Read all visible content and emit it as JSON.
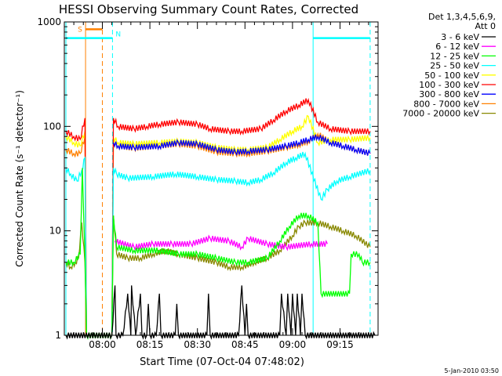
{
  "chart_data": {
    "type": "line",
    "title": "HESSI Observing Summary Count Rates, Corrected",
    "xlabel": "Start Time (07-Oct-04 07:48:02)",
    "ylabel": "Corrected Count Rate (s⁻¹ detector⁻¹)",
    "yscale": "log",
    "ylim": [
      1,
      1000
    ],
    "y_ticks": [
      {
        "value": 1,
        "label": "1"
      },
      {
        "value": 10,
        "label": "10"
      },
      {
        "value": 100,
        "label": "100"
      },
      {
        "value": 1000,
        "label": "1000"
      }
    ],
    "x_ticks": [
      {
        "value": 12,
        "label": "08:00"
      },
      {
        "value": 27,
        "label": "08:15"
      },
      {
        "value": 42,
        "label": "08:30"
      },
      {
        "value": 57,
        "label": "08:45"
      },
      {
        "value": 72,
        "label": "09:00"
      },
      {
        "value": 87,
        "label": "09:15"
      }
    ],
    "x_minor_ticks": [
      3,
      6,
      9,
      15,
      18,
      21,
      24,
      30,
      33,
      36,
      39,
      45,
      48,
      51,
      54,
      60,
      63,
      66,
      69,
      75,
      78,
      81,
      84,
      90,
      93,
      96
    ],
    "x_range_minutes": [
      0,
      99
    ],
    "x_axis_note": "x values are minutes after 07:48:00",
    "legend_header": [
      "Det 1,3,4,5,6,9,",
      "Att 0"
    ],
    "series": [
      {
        "name": "3 - 6 keV",
        "color": "#000000",
        "points": [
          [
            0.5,
            1
          ],
          [
            15,
            1
          ],
          [
            16,
            3.0
          ],
          [
            16.3,
            1
          ],
          [
            18.5,
            1
          ],
          [
            20,
            2.5
          ],
          [
            21,
            1
          ],
          [
            21.2,
            3.0
          ],
          [
            22.5,
            1
          ],
          [
            24,
            2.5
          ],
          [
            24.5,
            1
          ],
          [
            26,
            1
          ],
          [
            26.5,
            2.0
          ],
          [
            27,
            1
          ],
          [
            29,
            1
          ],
          [
            30,
            2.5
          ],
          [
            30.5,
            1
          ],
          [
            35,
            1
          ],
          [
            35.5,
            2.0
          ],
          [
            36,
            1
          ],
          [
            45,
            1
          ],
          [
            45.5,
            2.5
          ],
          [
            46,
            1
          ],
          [
            55,
            1
          ],
          [
            56,
            3.0
          ],
          [
            57,
            1
          ],
          [
            57.5,
            2.0
          ],
          [
            58,
            1
          ],
          [
            68,
            1
          ],
          [
            68.5,
            2.5
          ],
          [
            70,
            1
          ],
          [
            70.5,
            2.5
          ],
          [
            71.5,
            1
          ],
          [
            72,
            2.5
          ],
          [
            73,
            1
          ],
          [
            73.5,
            2.5
          ],
          [
            74.5,
            1
          ],
          [
            75,
            2.5
          ],
          [
            76,
            1
          ],
          [
            98,
            1
          ]
        ]
      },
      {
        "name": "6 - 12 keV",
        "color": "#ff00ff",
        "points": [
          [
            16,
            8
          ],
          [
            22,
            7
          ],
          [
            28,
            7.5
          ],
          [
            34,
            7.5
          ],
          [
            40,
            7.5
          ],
          [
            46,
            8.5
          ],
          [
            52,
            8
          ],
          [
            56,
            7
          ],
          [
            58,
            8.5
          ],
          [
            64,
            7.5
          ],
          [
            70,
            7
          ],
          [
            78,
            7.5
          ],
          [
            83,
            7.5
          ]
        ]
      },
      {
        "name": "12 - 25 keV",
        "color": "#00ff00",
        "points": [
          [
            0.5,
            5
          ],
          [
            3,
            5
          ],
          [
            5,
            6
          ],
          [
            5.7,
            40
          ],
          [
            6.5,
            6
          ],
          [
            7,
            1
          ],
          [
            15,
            1
          ],
          [
            15.5,
            14
          ],
          [
            16.5,
            7
          ],
          [
            22,
            6.5
          ],
          [
            30,
            6.5
          ],
          [
            36,
            6
          ],
          [
            42,
            6
          ],
          [
            48,
            5.5
          ],
          [
            54,
            5
          ],
          [
            58,
            5
          ],
          [
            64,
            5.5
          ],
          [
            68,
            8
          ],
          [
            71,
            11
          ],
          [
            74,
            14
          ],
          [
            77,
            14
          ],
          [
            80,
            12
          ],
          [
            81,
            2.5
          ],
          [
            90,
            2.5
          ],
          [
            90.5,
            6
          ],
          [
            93,
            6
          ],
          [
            94,
            5
          ],
          [
            96.5,
            5
          ]
        ]
      },
      {
        "name": "25 - 50 keV",
        "color": "#00ffff",
        "points": [
          [
            0.5,
            40
          ],
          [
            2,
            35
          ],
          [
            4,
            30
          ],
          [
            5.5,
            38
          ],
          [
            6.5,
            50
          ],
          [
            7,
            1
          ],
          [
            15,
            1
          ],
          [
            15.5,
            40
          ],
          [
            16.5,
            35
          ],
          [
            20,
            32
          ],
          [
            28,
            33
          ],
          [
            35,
            35
          ],
          [
            42,
            33
          ],
          [
            48,
            31
          ],
          [
            54,
            30
          ],
          [
            58,
            29
          ],
          [
            62,
            31
          ],
          [
            66,
            36
          ],
          [
            70,
            45
          ],
          [
            73,
            50
          ],
          [
            76,
            55
          ],
          [
            81,
            20
          ],
          [
            83,
            25
          ],
          [
            86,
            30
          ],
          [
            90,
            33
          ],
          [
            96.5,
            38
          ]
        ]
      },
      {
        "name": "50 - 100 keV",
        "color": "#ffff00",
        "points": [
          [
            0.5,
            80
          ],
          [
            3,
            70
          ],
          [
            5,
            65
          ],
          [
            6.5,
            90
          ],
          [
            7,
            1
          ],
          [
            15,
            1
          ],
          [
            15.5,
            78
          ],
          [
            17,
            70
          ],
          [
            22,
            68
          ],
          [
            30,
            70
          ],
          [
            36,
            72
          ],
          [
            42,
            70
          ],
          [
            48,
            63
          ],
          [
            54,
            60
          ],
          [
            58,
            60
          ],
          [
            64,
            63
          ],
          [
            68,
            75
          ],
          [
            72,
            90
          ],
          [
            75,
            100
          ],
          [
            77,
            125
          ],
          [
            80,
            70
          ],
          [
            84,
            75
          ],
          [
            90,
            75
          ],
          [
            96.5,
            78
          ]
        ]
      },
      {
        "name": "100 - 300 keV",
        "color": "#ff0000",
        "points": [
          [
            0.5,
            90
          ],
          [
            3,
            80
          ],
          [
            5,
            75
          ],
          [
            6.5,
            120
          ],
          [
            7,
            1
          ],
          [
            15,
            1
          ],
          [
            15.5,
            120
          ],
          [
            17,
            100
          ],
          [
            22,
            95
          ],
          [
            26,
            100
          ],
          [
            30,
            105
          ],
          [
            36,
            110
          ],
          [
            42,
            105
          ],
          [
            46,
            95
          ],
          [
            52,
            90
          ],
          [
            56,
            90
          ],
          [
            62,
            95
          ],
          [
            66,
            115
          ],
          [
            70,
            140
          ],
          [
            74,
            160
          ],
          [
            77,
            180
          ],
          [
            80,
            110
          ],
          [
            84,
            95
          ],
          [
            90,
            90
          ],
          [
            96.5,
            90
          ]
        ]
      },
      {
        "name": "300 - 800 keV",
        "color": "#0000ff",
        "points": [
          [
            15.5,
            70
          ],
          [
            17,
            65
          ],
          [
            22,
            63
          ],
          [
            30,
            65
          ],
          [
            36,
            70
          ],
          [
            42,
            68
          ],
          [
            48,
            60
          ],
          [
            54,
            57
          ],
          [
            58,
            58
          ],
          [
            64,
            60
          ],
          [
            70,
            65
          ],
          [
            74,
            70
          ],
          [
            77,
            75
          ],
          [
            80,
            80
          ],
          [
            84,
            70
          ],
          [
            88,
            65
          ],
          [
            92,
            60
          ],
          [
            96.5,
            55
          ]
        ]
      },
      {
        "name": "800 - 7000 keV",
        "color": "#ff8000",
        "points": [
          [
            0.5,
            60
          ],
          [
            3,
            55
          ],
          [
            5,
            55
          ],
          [
            6.5,
            80
          ],
          [
            7,
            1
          ],
          [
            15,
            1
          ],
          [
            15.5,
            70
          ],
          [
            17,
            65
          ],
          [
            22,
            62
          ],
          [
            30,
            65
          ],
          [
            36,
            68
          ],
          [
            42,
            65
          ],
          [
            48,
            57
          ],
          [
            54,
            55
          ],
          [
            58,
            55
          ],
          [
            64,
            58
          ],
          [
            70,
            63
          ],
          [
            74,
            67
          ],
          [
            77,
            72
          ],
          [
            80,
            85
          ],
          [
            84,
            70
          ],
          [
            88,
            65
          ],
          [
            92,
            60
          ],
          [
            96.5,
            55
          ]
        ]
      },
      {
        "name": "7000 - 20000 keV",
        "color": "#888800",
        "points": [
          [
            0.5,
            5
          ],
          [
            2,
            4.5
          ],
          [
            3.5,
            5
          ],
          [
            4.5,
            5.5
          ],
          [
            5.5,
            12
          ],
          [
            6.5,
            5
          ],
          [
            7,
            1
          ],
          [
            15,
            1
          ],
          [
            15.5,
            14
          ],
          [
            16.5,
            6
          ],
          [
            20,
            5.5
          ],
          [
            24,
            5.5
          ],
          [
            28,
            6
          ],
          [
            32,
            6.5
          ],
          [
            36,
            6
          ],
          [
            42,
            5.5
          ],
          [
            48,
            5
          ],
          [
            52,
            4.5
          ],
          [
            56,
            4.5
          ],
          [
            60,
            5
          ],
          [
            64,
            5.5
          ],
          [
            68,
            6.5
          ],
          [
            72,
            9
          ],
          [
            74,
            11
          ],
          [
            76,
            12
          ],
          [
            80,
            12
          ],
          [
            84,
            11
          ],
          [
            88,
            10
          ],
          [
            92,
            9
          ],
          [
            96.5,
            7
          ]
        ]
      }
    ],
    "vertical_lines": [
      {
        "x": 0.5,
        "color": "#00ffff",
        "style": "solid"
      },
      {
        "x": 6.7,
        "color": "#ff8000",
        "style": "solid"
      },
      {
        "x": 12.0,
        "color": "#ff8000",
        "style": "dashed"
      },
      {
        "x": 15.2,
        "color": "#00ffff",
        "style": "dashed"
      },
      {
        "x": 78.5,
        "color": "#00ffff",
        "style": "solid"
      },
      {
        "x": 96.5,
        "color": "#00ffff",
        "style": "dashed"
      }
    ],
    "bars": [
      {
        "label": "S",
        "color": "#ff8000",
        "x_start": 6.7,
        "x_end": 12.0,
        "y": 850
      },
      {
        "label": "N",
        "color": "#00ffff",
        "x_start": 0.5,
        "x_end": 15.2,
        "y": 700
      },
      {
        "label": "",
        "color": "#00ffff",
        "x_start": 78.5,
        "x_end": 96.5,
        "y": 700
      }
    ]
  },
  "footer_timestamp": "5-Jan-2010 03:50"
}
